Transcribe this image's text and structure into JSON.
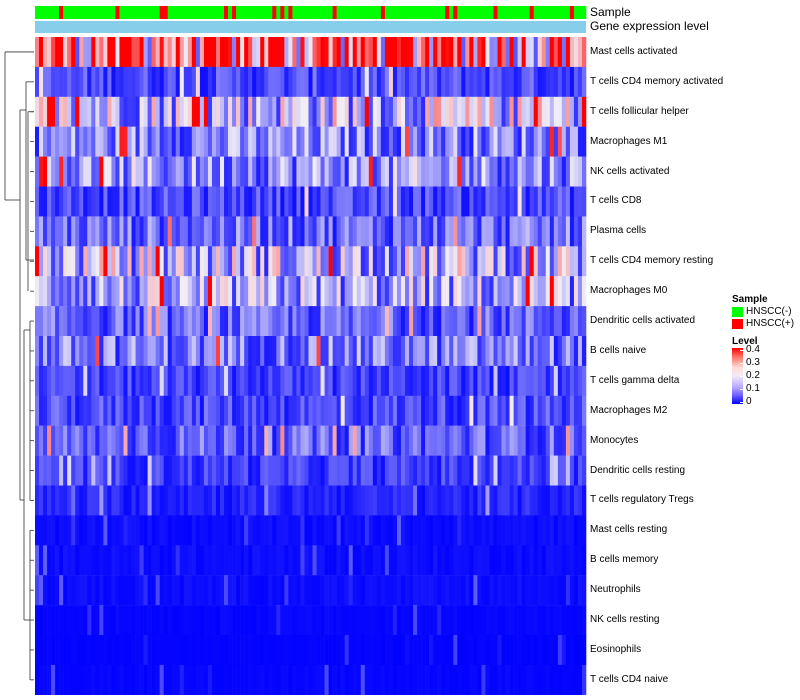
{
  "chart_data": {
    "type": "heatmap",
    "title": "",
    "annotation_rows": [
      "Sample",
      "Gene expression level"
    ],
    "rows": [
      {
        "name": "Mast cells activated",
        "level": 0.32
      },
      {
        "name": "T cells CD4 memory activated",
        "level": 0.06
      },
      {
        "name": "T cells follicular helper",
        "level": 0.16
      },
      {
        "name": "Macrophages M1",
        "level": 0.11
      },
      {
        "name": "NK cells activated",
        "level": 0.12
      },
      {
        "name": "T cells CD8",
        "level": 0.06
      },
      {
        "name": "Plasma cells",
        "level": 0.09
      },
      {
        "name": "T cells CD4 memory resting",
        "level": 0.15
      },
      {
        "name": "Macrophages M0",
        "level": 0.13
      },
      {
        "name": "Dendritic cells activated",
        "level": 0.08
      },
      {
        "name": "B cells naive",
        "level": 0.1
      },
      {
        "name": "T cells gamma delta",
        "level": 0.05
      },
      {
        "name": "Macrophages M2",
        "level": 0.06
      },
      {
        "name": "Monocytes",
        "level": 0.08
      },
      {
        "name": "Dendritic cells resting",
        "level": 0.05
      },
      {
        "name": "T cells regulatory  Tregs",
        "level": 0.03
      },
      {
        "name": "Mast cells resting",
        "level": 0.01
      },
      {
        "name": "B cells memory",
        "level": 0.01
      },
      {
        "name": "Neutrophils",
        "level": 0.01
      },
      {
        "name": "NK cells resting",
        "level": 0.005
      },
      {
        "name": "Eosinophils",
        "level": 0.003
      },
      {
        "name": "T cells CD4 naive",
        "level": 0.005
      }
    ],
    "sample_groups": [
      "HNSCC(-)",
      "HNSCC(+)"
    ],
    "sample_fraction_positive": 0.18,
    "n_samples": 137,
    "level_range": [
      0,
      0.4
    ],
    "level_ticks": [
      "0.4",
      "0.3",
      "0.2",
      "0.1",
      "0"
    ],
    "row_dendrogram": true
  },
  "legend": {
    "sample_title": "Sample",
    "items": [
      {
        "label": "HNSCC(-)",
        "color": "#00ff00"
      },
      {
        "label": "HNSCC(+)",
        "color": "#ff0000"
      }
    ],
    "level_title": "Level"
  },
  "colors": {
    "low": "#0000ff",
    "mid": "#f2eef6",
    "high": "#ff0000",
    "expression_bar": "#87ceeb"
  }
}
